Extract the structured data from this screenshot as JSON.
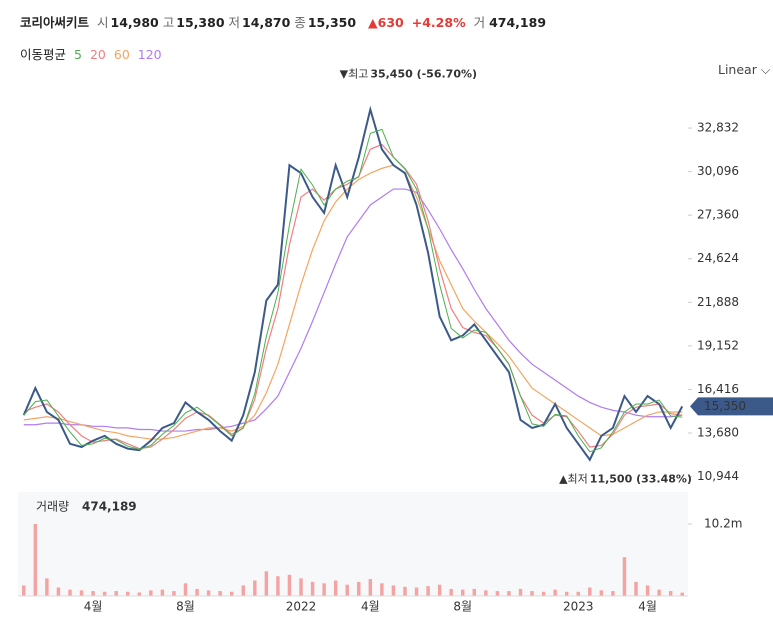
{
  "header": {
    "name": "코리아써키트",
    "items": [
      {
        "label": "시",
        "value": "14,980"
      },
      {
        "label": "고",
        "value": "15,380"
      },
      {
        "label": "저",
        "value": "14,870"
      },
      {
        "label": "종",
        "value": "15,350"
      }
    ],
    "change": "▲630",
    "change_pct": "+4.28%",
    "volume_label": "거",
    "volume": "474,189"
  },
  "chart_data": {
    "type": "line",
    "legend_title": "이동평균",
    "scale_label": "Linear",
    "categories": [
      null,
      null,
      null,
      null,
      null,
      null,
      "4월",
      null,
      null,
      null,
      null,
      null,
      null,
      null,
      "8월",
      null,
      null,
      null,
      null,
      null,
      null,
      null,
      null,
      null,
      "2022",
      null,
      null,
      null,
      null,
      null,
      "4월",
      null,
      null,
      null,
      null,
      null,
      null,
      null,
      "8월",
      null,
      null,
      null,
      null,
      null,
      null,
      null,
      null,
      null,
      "2023",
      null,
      null,
      null,
      null,
      null,
      "4월",
      null,
      null,
      null
    ],
    "ylim": [
      10100,
      35850
    ],
    "yticks": [
      {
        "value": 10944,
        "label": "10,944"
      },
      {
        "value": 13680,
        "label": "13,680"
      },
      {
        "value": 16416,
        "label": "16,416"
      },
      {
        "value": 19152,
        "label": "19,152"
      },
      {
        "value": 21888,
        "label": "21,888"
      },
      {
        "value": 24624,
        "label": "24,624"
      },
      {
        "value": 27360,
        "label": "27,360"
      },
      {
        "value": 30096,
        "label": "30,096"
      },
      {
        "value": 32832,
        "label": "32,832"
      }
    ],
    "series": [
      {
        "name": "5",
        "color": "#4caf50",
        "values": [
          14800,
          15650,
          15750,
          14750,
          13750,
          12900,
          13000,
          13350,
          13250,
          12850,
          12650,
          12900,
          13600,
          14150,
          14950,
          15300,
          14750,
          14150,
          13500,
          14000,
          16150,
          19750,
          22500,
          26750,
          30250,
          29250,
          28000,
          29000,
          29500,
          29750,
          32500,
          32750,
          31000,
          30250,
          29000,
          26500,
          23000,
          20250,
          19650,
          20150,
          20000,
          19000,
          18000,
          16000,
          14250,
          14100,
          14850,
          14750,
          13500,
          12500,
          12750,
          13750,
          15000,
          15500,
          15500,
          15750,
          14750,
          14675
        ]
      },
      {
        "name": "20",
        "color": "#f08080",
        "values": [
          15000,
          15300,
          15500,
          15000,
          14200,
          13500,
          13100,
          13200,
          13300,
          13000,
          12700,
          12800,
          13300,
          13900,
          14600,
          15000,
          14800,
          14200,
          13600,
          14000,
          15800,
          19000,
          21500,
          25500,
          28500,
          29000,
          28300,
          29000,
          29300,
          29800,
          31500,
          31800,
          31000,
          30300,
          29300,
          27000,
          24000,
          21500,
          20300,
          20000,
          19800,
          19000,
          18000,
          16000,
          14800,
          14300,
          14800,
          14700,
          13800,
          12800,
          12900,
          13600,
          14800,
          15300,
          15400,
          15500,
          14900,
          14800
        ]
      },
      {
        "name": "60",
        "color": "#f4a460",
        "values": [
          14500,
          14600,
          14700,
          14600,
          14400,
          14200,
          14000,
          13800,
          13700,
          13500,
          13400,
          13300,
          13300,
          13400,
          13600,
          13800,
          14000,
          14000,
          13800,
          14100,
          14800,
          16200,
          18000,
          20500,
          23000,
          25200,
          27000,
          28200,
          29000,
          29600,
          30000,
          30300,
          30500,
          30000,
          28500,
          26500,
          24500,
          23000,
          21500,
          20700,
          20000,
          19300,
          18500,
          17500,
          16500,
          16000,
          15500,
          15000,
          14500,
          14000,
          13500,
          13600,
          14000,
          14400,
          14800,
          15000,
          15000,
          15000
        ]
      },
      {
        "name": "120",
        "color": "#b07cf0",
        "values": [
          14200,
          14200,
          14300,
          14300,
          14200,
          14200,
          14100,
          14100,
          14000,
          14000,
          13900,
          13900,
          13800,
          13800,
          13800,
          13900,
          13900,
          14000,
          14100,
          14300,
          14500,
          15200,
          16000,
          17500,
          19000,
          20700,
          22500,
          24300,
          26000,
          27000,
          28000,
          28500,
          29000,
          29000,
          28800,
          27700,
          26500,
          25200,
          24000,
          22700,
          21500,
          20500,
          19500,
          18700,
          18000,
          17500,
          17000,
          16500,
          16000,
          15600,
          15300,
          15100,
          15000,
          14800,
          14700,
          14700,
          14700,
          14800
        ]
      }
    ],
    "price": {
      "color": "#3b5a8a",
      "values": [
        14800,
        16500,
        15000,
        14500,
        13000,
        12800,
        13200,
        13500,
        13000,
        12700,
        12600,
        13200,
        14000,
        14300,
        15600,
        15000,
        14500,
        13800,
        13200,
        14800,
        17500,
        22000,
        23000,
        30500,
        30000,
        28500,
        27500,
        30500,
        28500,
        31000,
        34000,
        31500,
        30500,
        30000,
        28000,
        25000,
        21000,
        19500,
        19800,
        20500,
        19500,
        18500,
        17500,
        14500,
        14000,
        14200,
        15500,
        14000,
        13000,
        12000,
        13500,
        14000,
        16000,
        15000,
        16000,
        15500,
        14000,
        15350
      ]
    },
    "current": {
      "value": 15350,
      "label": "15,350",
      "color": "#3b5a8a"
    },
    "high": {
      "index": 30,
      "marker": "▼최고",
      "value": 35450,
      "label": "35,450 (-56.70%)"
    },
    "low": {
      "index": 49,
      "marker": "▲최저",
      "value": 11500,
      "label": "11,500 (33.48%)"
    },
    "volume": {
      "title": "거래량",
      "last": "474,189",
      "color": "#f4a3a3",
      "ylim": [
        0,
        13600000
      ],
      "yticks": [
        {
          "value": 10200000,
          "label": "10.2m"
        }
      ],
      "values": [
        1500000,
        10200000,
        2500000,
        1200000,
        900000,
        800000,
        700000,
        600000,
        700000,
        600000,
        500000,
        800000,
        900000,
        700000,
        1800000,
        1000000,
        800000,
        700000,
        600000,
        1500000,
        2200000,
        3500000,
        2800000,
        3000000,
        2500000,
        2000000,
        1800000,
        2200000,
        1600000,
        2000000,
        2400000,
        1800000,
        1500000,
        1300000,
        1200000,
        1400000,
        1600000,
        1000000,
        900000,
        1000000,
        800000,
        700000,
        700000,
        1000000,
        700000,
        600000,
        900000,
        600000,
        600000,
        1200000,
        800000,
        700000,
        5500000,
        2000000,
        1500000,
        900000,
        700000,
        474189
      ]
    }
  }
}
